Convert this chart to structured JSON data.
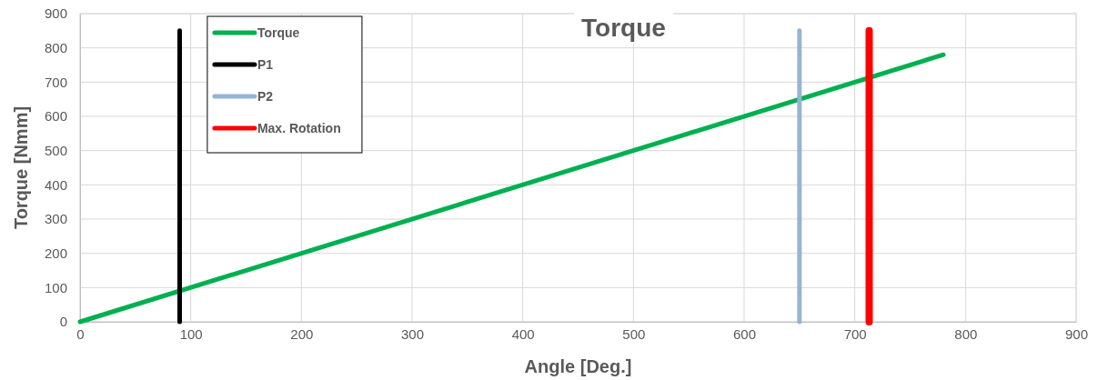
{
  "chart_data": {
    "type": "line",
    "title": "Torque",
    "xlabel": "Angle [Deg.]",
    "ylabel": "Torque [Nmm]",
    "xlim": [
      0,
      900
    ],
    "xticks": [
      0,
      100,
      200,
      300,
      400,
      500,
      600,
      700,
      800,
      900
    ],
    "ylim": [
      0,
      900
    ],
    "yticks": [
      0,
      100,
      200,
      300,
      400,
      500,
      600,
      700,
      800,
      900
    ],
    "grid": true,
    "legend": "top left",
    "marker": "none",
    "line_style": "solid",
    "series": [
      {
        "name": "Torque",
        "color": "#00b050",
        "x": [
          0,
          780
        ],
        "values": [
          0,
          780
        ]
      },
      {
        "name": "P1",
        "color": "#000000",
        "x": [
          90,
          90
        ],
        "values": [
          0,
          850
        ]
      },
      {
        "name": "P2",
        "color": "#95b3d7",
        "x": [
          650,
          650
        ],
        "values": [
          0,
          850
        ]
      },
      {
        "name": "Max. Rotation",
        "color": "#ff0000",
        "x": [
          713,
          713
        ],
        "values": [
          0,
          850
        ]
      }
    ]
  }
}
